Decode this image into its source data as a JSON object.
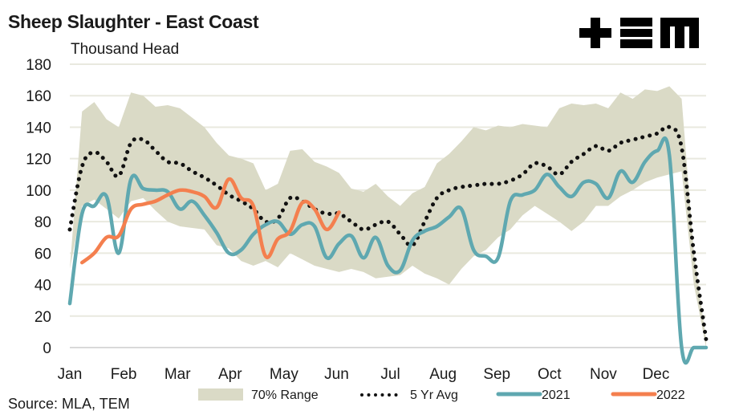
{
  "header": {
    "title": "Sheep Slaughter - East Coast",
    "subtitle": "Thousand Head",
    "logo": "plus-equals-m-logo"
  },
  "footer": {
    "source": "Source: MLA, TEM"
  },
  "colors": {
    "range": "#dadac6",
    "avg": "#111111",
    "y2021": "#5fa8b0",
    "y2022": "#f47f4e",
    "grid": "#e9e9df"
  },
  "chart_data": {
    "type": "line",
    "title": "Sheep Slaughter - East Coast",
    "ylabel": "Thousand Head",
    "xlabel": "",
    "ylim": [
      0,
      180
    ],
    "yticks": [
      0,
      20,
      40,
      60,
      80,
      100,
      120,
      140,
      160,
      180
    ],
    "xtick_labels": [
      "Jan",
      "Feb",
      "Mar",
      "Apr",
      "May",
      "Jun",
      "Jul",
      "Aug",
      "Sep",
      "Oct",
      "Nov",
      "Dec"
    ],
    "xtick_weeks": [
      0,
      4.4,
      8.8,
      13.1,
      17.5,
      21.8,
      26.2,
      30.5,
      34.9,
      39.2,
      43.6,
      47.9
    ],
    "grid": true,
    "legend_position": "bottom",
    "x_unit": "week of year (0-52)",
    "range_70pct": {
      "name": "70% Range",
      "upper": [
        50,
        150,
        156,
        145,
        140,
        162,
        160,
        153,
        154,
        152,
        146,
        140,
        130,
        122,
        120,
        117,
        100,
        104,
        125,
        126,
        118,
        115,
        111,
        101,
        99,
        104,
        96,
        90,
        98,
        102,
        117,
        123,
        131,
        140,
        138,
        141,
        140,
        142,
        141,
        140,
        152,
        155,
        154,
        155,
        152,
        162,
        158,
        164,
        163,
        166,
        158,
        60,
        5
      ],
      "lower": [
        50,
        90,
        94,
        88,
        82,
        93,
        95,
        87,
        80,
        77,
        76,
        75,
        65,
        63,
        55,
        52,
        55,
        51,
        60,
        56,
        52,
        50,
        48,
        50,
        48,
        44,
        45,
        46,
        52,
        47,
        44,
        40,
        50,
        58,
        62,
        70,
        75,
        84,
        90,
        85,
        80,
        74,
        80,
        90,
        90,
        96,
        100,
        105,
        108,
        110,
        112,
        40,
        0
      ]
    },
    "series": [
      {
        "name": "5 Yr Avg",
        "style": "dotted",
        "values": [
          75,
          115,
          124,
          118,
          109,
          130,
          132,
          125,
          118,
          117,
          112,
          108,
          103,
          97,
          93,
          88,
          80,
          82,
          95,
          93,
          88,
          85,
          85,
          80,
          75,
          78,
          80,
          72,
          65,
          80,
          95,
          100,
          102,
          103,
          104,
          104,
          106,
          110,
          117,
          115,
          110,
          118,
          123,
          128,
          125,
          130,
          132,
          134,
          136,
          140,
          127,
          60,
          5
        ]
      },
      {
        "name": "2021",
        "style": "solid",
        "values": [
          28,
          85,
          90,
          96,
          60,
          107,
          101,
          100,
          99,
          88,
          93,
          84,
          73,
          60,
          62,
          72,
          78,
          80,
          72,
          78,
          77,
          57,
          66,
          71,
          57,
          70,
          52,
          49,
          68,
          74,
          77,
          83,
          88,
          62,
          58,
          57,
          93,
          97,
          100,
          110,
          102,
          96,
          105,
          104,
          95,
          112,
          105,
          118,
          125,
          122,
          0,
          0,
          0
        ]
      },
      {
        "name": "2022",
        "style": "solid",
        "start_week": 1,
        "values": [
          54,
          60,
          70,
          71,
          88,
          91,
          93,
          97,
          100,
          99,
          96,
          89,
          107,
          95,
          90,
          58,
          69,
          74,
          92,
          88,
          75,
          86
        ]
      }
    ]
  },
  "legend": [
    {
      "label": "70% Range",
      "type": "area"
    },
    {
      "label": "5 Yr Avg",
      "type": "dotted"
    },
    {
      "label": "2021",
      "type": "line"
    },
    {
      "label": "2022",
      "type": "line"
    }
  ]
}
